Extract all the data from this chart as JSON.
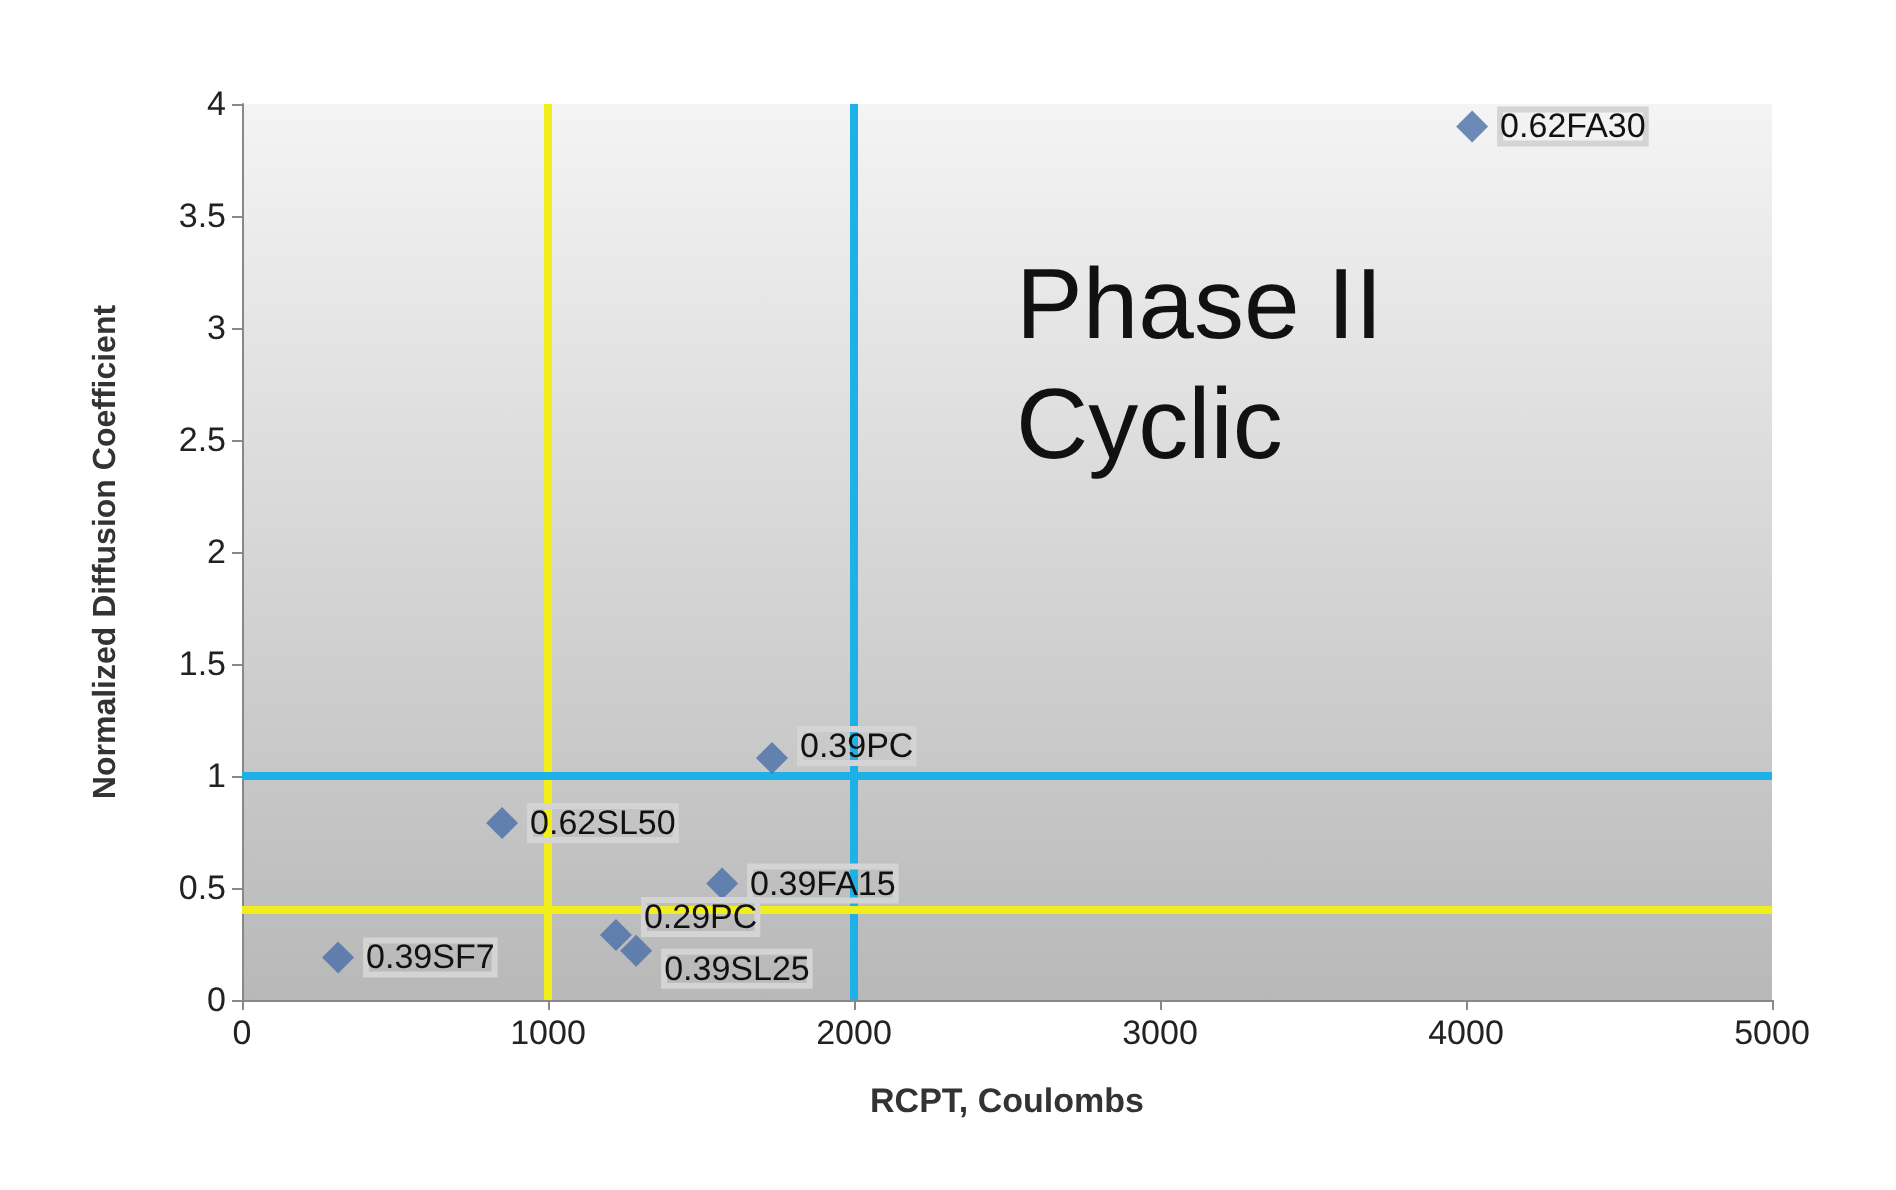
{
  "chart_data": {
    "type": "scatter",
    "xlabel": "RCPT, Coulombs",
    "ylabel": "Normalized Diffusion Coefficient",
    "x": [
      4020,
      1732,
      850,
      1569,
      1222,
      1288,
      314
    ],
    "series": [
      {
        "color": "#4a6fa8",
        "values": [
          3.9,
          1.08,
          0.79,
          0.52,
          0.29,
          0.22,
          0.19
        ]
      }
    ],
    "xlim": [
      0,
      5000
    ],
    "xticks": [
      0,
      1000,
      2000,
      3000,
      4000,
      5000
    ],
    "ylim": [
      0,
      4
    ],
    "yticks": [
      0,
      0.5,
      1,
      1.5,
      2,
      2.5,
      3,
      3.5,
      4
    ],
    "ref_lines": [
      {
        "axis": "x",
        "value": 1000,
        "color": "#f2ee1c"
      },
      {
        "axis": "x",
        "value": 2000,
        "color": "#1fb0e8"
      },
      {
        "axis": "y",
        "value": 1,
        "color": "#1fb0e8"
      },
      {
        "axis": "y",
        "value": 0.4,
        "color": "#f2ee1c"
      }
    ],
    "annotations": [
      "Phase II Cyclic",
      {
        "text": "0.62FA30",
        "x": 4020,
        "y": 3.9
      },
      {
        "text": "0.39PC",
        "x": 1732,
        "y": 1.08
      },
      {
        "text": "0.62SL50",
        "x": 850,
        "y": 0.79
      },
      {
        "text": "0.39FA15",
        "x": 1569,
        "y": 0.52
      },
      {
        "text": "0.29PC",
        "x": 1222,
        "y": 0.29
      },
      {
        "text": "0.39SL25",
        "x": 1288,
        "y": 0.22
      },
      {
        "text": "0.39SF7",
        "x": 314,
        "y": 0.19
      }
    ],
    "marker": "diamond",
    "grid": false
  }
}
